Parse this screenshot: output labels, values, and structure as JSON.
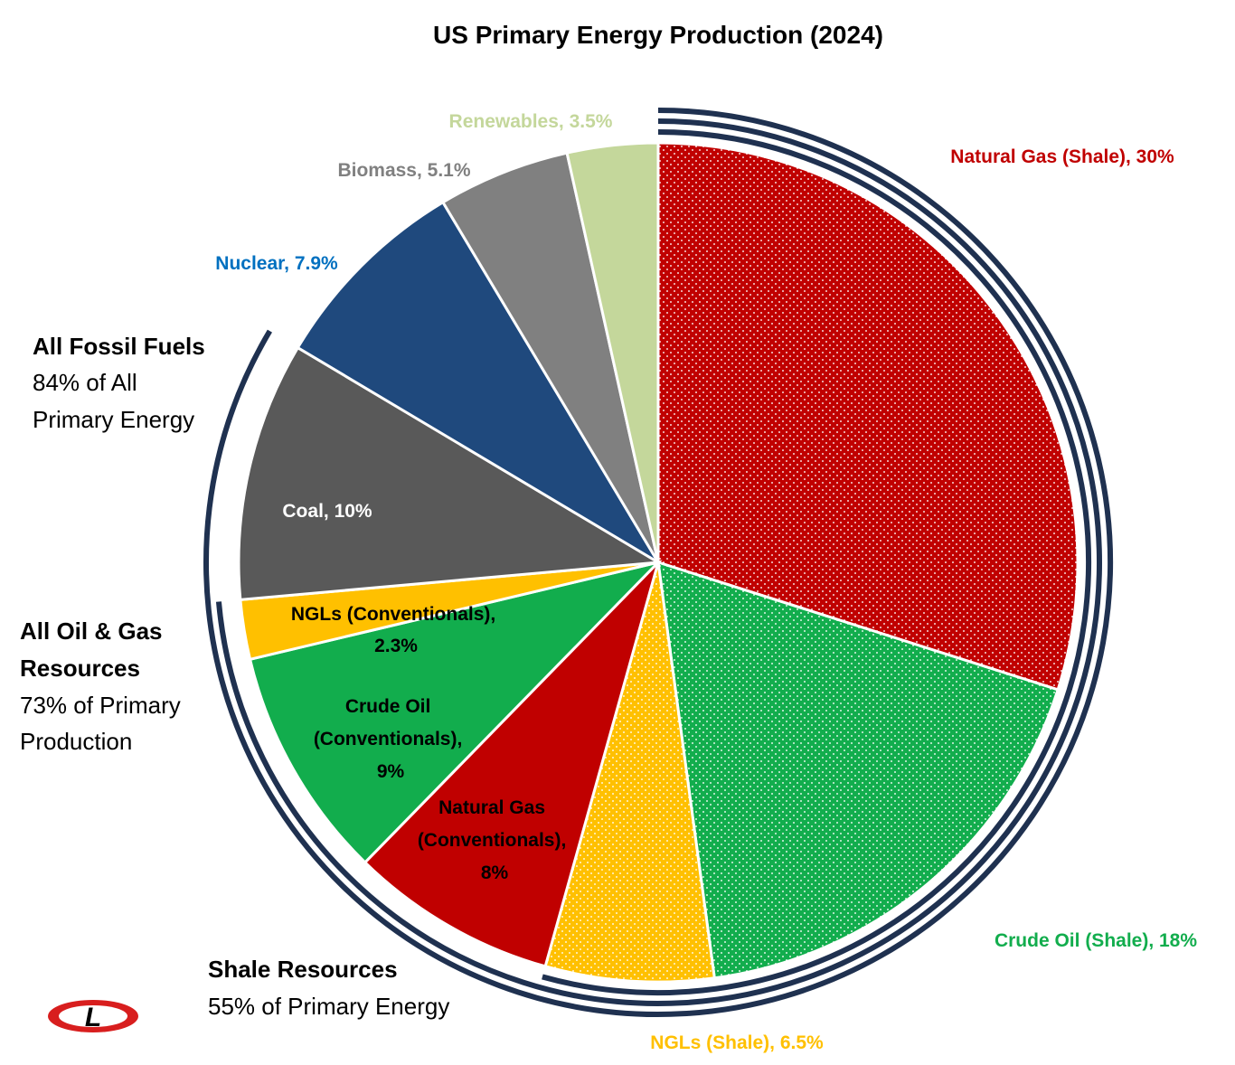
{
  "colors": {
    "natural_gas": "#C00000",
    "crude_oil": "#12AD4D",
    "ngls": "#FFC000",
    "coal": "#595959",
    "nuclear": "#1F497D",
    "biomass": "#808080",
    "renewables": "#C4D79B",
    "brackets": "#1F3150",
    "nuclear_label": "#0070C0"
  },
  "chart_data": {
    "type": "pie",
    "title": "US Primary Energy Production (2024)",
    "slices": [
      {
        "label": "Natural Gas (Shale), 30%",
        "value": 30,
        "color": "#C00000",
        "pattern": "dots",
        "label_color": "#C00000"
      },
      {
        "label": "Crude Oil (Shale), 18%",
        "value": 18,
        "color": "#12AD4D",
        "pattern": "dots",
        "label_color": "#12AD4D"
      },
      {
        "label": "NGLs (Shale), 6.5%",
        "value": 6.5,
        "color": "#FFC000",
        "pattern": "dots",
        "label_color": "#FFC000"
      },
      {
        "label": "Natural Gas (Conventionals), 8%",
        "value": 8,
        "color": "#C00000",
        "pattern": "solid",
        "label_color": "#000000"
      },
      {
        "label": "Crude Oil (Conventionals), 9%",
        "value": 9,
        "color": "#12AD4D",
        "pattern": "solid",
        "label_color": "#000000"
      },
      {
        "label": "NGLs (Conventionals), 2.3%",
        "value": 2.3,
        "color": "#FFC000",
        "pattern": "solid",
        "label_color": "#000000"
      },
      {
        "label": "Coal, 10%",
        "value": 10,
        "color": "#595959",
        "pattern": "solid",
        "label_color": "#FFFFFF"
      },
      {
        "label": "Nuclear, 7.9%",
        "value": 7.9,
        "color": "#1F497D",
        "pattern": "solid",
        "label_color": "#0070C0"
      },
      {
        "label": "Biomass, 5.1%",
        "value": 5.1,
        "color": "#808080",
        "pattern": "solid",
        "label_color": "#808080"
      },
      {
        "label": "Renewables, 3.5%",
        "value": 3.5,
        "color": "#C4D79B",
        "pattern": "solid",
        "label_color": "#C4D79B"
      }
    ],
    "labels": {
      "natural_gas_shale": "Natural Gas (Shale), 30%",
      "crude_oil_shale": "Crude Oil (Shale), 18%",
      "ngls_shale": "NGLs (Shale), 6.5%",
      "natural_gas_conv": [
        "Natural Gas",
        "(Conventionals),",
        "8%"
      ],
      "crude_oil_conv": [
        "Crude Oil",
        "(Conventionals),",
        "9%"
      ],
      "ngls_conv": [
        "NGLs (Conventionals),",
        "2.3%"
      ],
      "coal": "Coal, 10%",
      "nuclear": "Nuclear, 7.9%",
      "biomass": "Biomass, 5.1%",
      "renewables": "Renewables, 3.5%"
    },
    "groups": [
      {
        "title": "All Fossil Fuels",
        "lines": [
          "84% of All",
          "Primary Energy"
        ],
        "share": 84
      },
      {
        "title": [
          "All Oil & Gas",
          "Resources"
        ],
        "lines": [
          "73% of Primary",
          "Production"
        ],
        "share": 73
      },
      {
        "title": "Shale Resources",
        "lines": [
          "55% of Primary Energy"
        ],
        "share": 55
      }
    ]
  },
  "logo": {
    "letter": "L",
    "name": "logo-icon"
  }
}
